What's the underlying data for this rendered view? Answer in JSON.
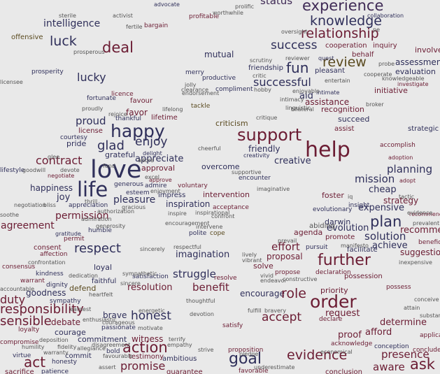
{
  "palette": {
    "navy": "#2f2f5a",
    "maroon": "#6b1c33",
    "olive": "#5a4a1f",
    "gray": "#555555",
    "purple": "#3f2a55"
  },
  "words": [
    {
      "text": "experience",
      "c": "purple"
    },
    {
      "text": "status",
      "c": "purple"
    },
    {
      "text": "advocate",
      "c": "navy"
    },
    {
      "text": "profitable",
      "c": "maroon"
    },
    {
      "text": "intelligence",
      "c": "navy"
    },
    {
      "text": "bargain",
      "c": "maroon"
    },
    {
      "text": "knowledge",
      "c": "navy"
    },
    {
      "text": "collaboration",
      "c": "navy"
    },
    {
      "text": "relationship",
      "c": "maroon"
    },
    {
      "text": "offensive",
      "c": "olive"
    },
    {
      "text": "luck",
      "c": "navy"
    },
    {
      "text": "deal",
      "c": "maroon"
    },
    {
      "text": "success",
      "c": "navy"
    },
    {
      "text": "cooperation",
      "c": "maroon"
    },
    {
      "text": "inquiry",
      "c": "maroon"
    },
    {
      "text": "involve",
      "c": "maroon"
    },
    {
      "text": "mutual",
      "c": "navy"
    },
    {
      "text": "review",
      "c": "olive"
    },
    {
      "text": "behalf",
      "c": "maroon"
    },
    {
      "text": "assessment",
      "c": "navy"
    },
    {
      "text": "prosperity",
      "c": "navy"
    },
    {
      "text": "fun",
      "c": "navy"
    },
    {
      "text": "friendship",
      "c": "navy"
    },
    {
      "text": "pleasant",
      "c": "navy"
    },
    {
      "text": "evaluation",
      "c": "navy"
    },
    {
      "text": "lucky",
      "c": "navy"
    },
    {
      "text": "merry",
      "c": "navy"
    },
    {
      "text": "productive",
      "c": "navy"
    },
    {
      "text": "successful",
      "c": "navy"
    },
    {
      "text": "investigate",
      "c": "maroon"
    },
    {
      "text": "initiative",
      "c": "maroon"
    },
    {
      "text": "compliment",
      "c": "navy"
    },
    {
      "text": "fortunate",
      "c": "navy"
    },
    {
      "text": "licence",
      "c": "maroon"
    },
    {
      "text": "favour",
      "c": "maroon"
    },
    {
      "text": "aid",
      "c": "navy"
    },
    {
      "text": "intimate",
      "c": "navy"
    },
    {
      "text": "assistance",
      "c": "maroon"
    },
    {
      "text": "tackle",
      "c": "olive"
    },
    {
      "text": "recognition",
      "c": "maroon"
    },
    {
      "text": "favor",
      "c": "maroon"
    },
    {
      "text": "thankful",
      "c": "navy"
    },
    {
      "text": "lifetime",
      "c": "maroon"
    },
    {
      "text": "succeed",
      "c": "navy"
    },
    {
      "text": "proud",
      "c": "navy"
    },
    {
      "text": "criticism",
      "c": "olive"
    },
    {
      "text": "assist",
      "c": "maroon"
    },
    {
      "text": "happy",
      "c": "navy"
    },
    {
      "text": "strategic",
      "c": "navy"
    },
    {
      "text": "license",
      "c": "maroon"
    },
    {
      "text": "support",
      "c": "maroon"
    },
    {
      "text": "pride",
      "c": "navy"
    },
    {
      "text": "enjoy",
      "c": "navy"
    },
    {
      "text": "glad",
      "c": "navy"
    },
    {
      "text": "help",
      "c": "maroon"
    },
    {
      "text": "accomplish",
      "c": "maroon"
    },
    {
      "text": "friendly",
      "c": "navy"
    },
    {
      "text": "grateful",
      "c": "navy"
    },
    {
      "text": "appreciate",
      "c": "navy"
    },
    {
      "text": "delight",
      "c": "navy"
    },
    {
      "text": "creativity",
      "c": "navy"
    },
    {
      "text": "adoption",
      "c": "maroon"
    },
    {
      "text": "contract",
      "c": "maroon"
    },
    {
      "text": "creative",
      "c": "navy"
    },
    {
      "text": "love",
      "c": "navy"
    },
    {
      "text": "approval",
      "c": "maroon"
    },
    {
      "text": "overcome",
      "c": "navy"
    },
    {
      "text": "planning",
      "c": "navy"
    },
    {
      "text": "negotiate",
      "c": "maroon"
    },
    {
      "text": "approve",
      "c": "maroon"
    },
    {
      "text": "encounter",
      "c": "navy"
    },
    {
      "text": "mission",
      "c": "navy"
    },
    {
      "text": "adopt",
      "c": "maroon"
    },
    {
      "text": "happiness",
      "c": "navy"
    },
    {
      "text": "life",
      "c": "navy"
    },
    {
      "text": "admire",
      "c": "navy"
    },
    {
      "text": "voluntary",
      "c": "maroon"
    },
    {
      "text": "cheap",
      "c": "navy"
    },
    {
      "text": "joy",
      "c": "navy"
    },
    {
      "text": "esteem",
      "c": "navy"
    },
    {
      "text": "impress",
      "c": "navy"
    },
    {
      "text": "intervention",
      "c": "maroon"
    },
    {
      "text": "foster",
      "c": "maroon"
    },
    {
      "text": "strategy",
      "c": "maroon"
    },
    {
      "text": "pleasure",
      "c": "navy"
    },
    {
      "text": "inspiration",
      "c": "navy"
    },
    {
      "text": "insight",
      "c": "navy"
    },
    {
      "text": "appreciation",
      "c": "navy"
    },
    {
      "text": "acceptance",
      "c": "maroon"
    },
    {
      "text": "expensive",
      "c": "navy"
    },
    {
      "text": "permission",
      "c": "maroon"
    },
    {
      "text": "evolutionary",
      "c": "navy"
    },
    {
      "text": "recommendation",
      "c": "maroon"
    },
    {
      "text": "plan",
      "c": "navy"
    },
    {
      "text": "agreement",
      "c": "maroon"
    },
    {
      "text": "evolution",
      "c": "navy"
    },
    {
      "text": "recommend",
      "c": "maroon"
    },
    {
      "text": "humble",
      "c": "navy"
    },
    {
      "text": "polite",
      "c": "navy"
    },
    {
      "text": "cope",
      "c": "olive"
    },
    {
      "text": "agenda",
      "c": "maroon"
    },
    {
      "text": "solution",
      "c": "navy"
    },
    {
      "text": "permit",
      "c": "maroon"
    },
    {
      "text": "promote",
      "c": "maroon"
    },
    {
      "text": "effort",
      "c": "maroon"
    },
    {
      "text": "achieve",
      "c": "navy"
    },
    {
      "text": "beneficial",
      "c": "maroon"
    },
    {
      "text": "consent",
      "c": "maroon"
    },
    {
      "text": "respect",
      "c": "navy"
    },
    {
      "text": "pursuit",
      "c": "navy"
    },
    {
      "text": "facilitate",
      "c": "navy"
    },
    {
      "text": "affection",
      "c": "maroon"
    },
    {
      "text": "imagination",
      "c": "navy"
    },
    {
      "text": "proposal",
      "c": "maroon"
    },
    {
      "text": "suggestion",
      "c": "maroon"
    },
    {
      "text": "further",
      "c": "maroon"
    },
    {
      "text": "loyal",
      "c": "navy"
    },
    {
      "text": "solve",
      "c": "maroon"
    },
    {
      "text": "consensus",
      "c": "maroon"
    },
    {
      "text": "kindness",
      "c": "navy"
    },
    {
      "text": "satisfaction",
      "c": "navy"
    },
    {
      "text": "struggle",
      "c": "navy"
    },
    {
      "text": "propose",
      "c": "maroon"
    },
    {
      "text": "declaration",
      "c": "maroon"
    },
    {
      "text": "possession",
      "c": "maroon"
    },
    {
      "text": "warrant",
      "c": "maroon"
    },
    {
      "text": "faithful",
      "c": "navy"
    },
    {
      "text": "resolve",
      "c": "maroon"
    },
    {
      "text": "dignity",
      "c": "navy"
    },
    {
      "text": "defend",
      "c": "olive"
    },
    {
      "text": "resolution",
      "c": "maroon"
    },
    {
      "text": "benefit",
      "c": "maroon"
    },
    {
      "text": "possess",
      "c": "maroon"
    },
    {
      "text": "goodness",
      "c": "navy"
    },
    {
      "text": "priority",
      "c": "maroon"
    },
    {
      "text": "duty",
      "c": "maroon"
    },
    {
      "text": "encourage",
      "c": "navy"
    },
    {
      "text": "role",
      "c": "maroon"
    },
    {
      "text": "sympathy",
      "c": "navy"
    },
    {
      "text": "order",
      "c": "maroon"
    },
    {
      "text": "responsibility",
      "c": "maroon"
    },
    {
      "text": "brave",
      "c": "navy"
    },
    {
      "text": "honest",
      "c": "navy"
    },
    {
      "text": "request",
      "c": "maroon"
    },
    {
      "text": "sensible",
      "c": "maroon"
    },
    {
      "text": "debate",
      "c": "maroon"
    },
    {
      "text": "accept",
      "c": "maroon"
    },
    {
      "text": "declare",
      "c": "maroon"
    },
    {
      "text": "determine",
      "c": "maroon"
    },
    {
      "text": "passionate",
      "c": "navy"
    },
    {
      "text": "satisfy",
      "c": "maroon"
    },
    {
      "text": "loyalty",
      "c": "maroon"
    },
    {
      "text": "courage",
      "c": "navy"
    },
    {
      "text": "afford",
      "c": "maroon"
    },
    {
      "text": "proof",
      "c": "maroon"
    },
    {
      "text": "witness",
      "c": "maroon"
    },
    {
      "text": "compromise",
      "c": "maroon"
    },
    {
      "text": "commitment",
      "c": "navy"
    },
    {
      "text": "action",
      "c": "maroon"
    },
    {
      "text": "acknowledge",
      "c": "maroon"
    },
    {
      "text": "conception",
      "c": "navy"
    },
    {
      "text": "conclude",
      "c": "maroon"
    },
    {
      "text": "applicable",
      "c": "maroon"
    },
    {
      "text": "virtue",
      "c": "navy"
    },
    {
      "text": "bold",
      "c": "navy"
    },
    {
      "text": "proposition",
      "c": "maroon"
    },
    {
      "text": "goal",
      "c": "navy"
    },
    {
      "text": "evidence",
      "c": "maroon"
    },
    {
      "text": "presence",
      "c": "maroon"
    },
    {
      "text": "commit",
      "c": "navy"
    },
    {
      "text": "testimony",
      "c": "maroon"
    },
    {
      "text": "ambitious",
      "c": "navy"
    },
    {
      "text": "act",
      "c": "maroon"
    },
    {
      "text": "honesty",
      "c": "navy"
    },
    {
      "text": "promise",
      "c": "maroon"
    },
    {
      "text": "aware",
      "c": "maroon"
    },
    {
      "text": "ask",
      "c": "maroon"
    },
    {
      "text": "sacrifice",
      "c": "maroon"
    },
    {
      "text": "patience",
      "c": "navy"
    },
    {
      "text": "guarantee",
      "c": "maroon"
    },
    {
      "text": "favorable",
      "c": "maroon"
    },
    {
      "text": "conclusion",
      "c": "maroon"
    },
    {
      "text": "gratitude",
      "c": "navy"
    },
    {
      "text": "generous",
      "c": "navy"
    },
    {
      "text": "courtesy",
      "c": "navy"
    },
    {
      "text": "lifestyle",
      "c": "navy"
    },
    {
      "text": "sterile",
      "c": "gray"
    },
    {
      "text": "worthwhile",
      "c": "gray"
    },
    {
      "text": "activist",
      "c": "gray"
    },
    {
      "text": "prolific",
      "c": "gray"
    },
    {
      "text": "fertile",
      "c": "gray"
    },
    {
      "text": "oversight",
      "c": "gray"
    },
    {
      "text": "prosperous",
      "c": "gray"
    },
    {
      "text": "reviewer",
      "c": "gray"
    },
    {
      "text": "critic",
      "c": "gray"
    },
    {
      "text": "jolly",
      "c": "gray"
    },
    {
      "text": "entertain",
      "c": "gray"
    },
    {
      "text": "cooperate",
      "c": "gray"
    },
    {
      "text": "knowledgeable",
      "c": "gray"
    },
    {
      "text": "hobby",
      "c": "gray"
    },
    {
      "text": "clearance",
      "c": "gray"
    },
    {
      "text": "endorsement",
      "c": "gray"
    },
    {
      "text": "enjoyable",
      "c": "gray"
    },
    {
      "text": "proudly",
      "c": "gray"
    },
    {
      "text": "rejoice",
      "c": "gray"
    },
    {
      "text": "lifelong",
      "c": "gray"
    },
    {
      "text": "intimacy",
      "c": "gray"
    },
    {
      "text": "linguistic",
      "c": "gray"
    },
    {
      "text": "broker",
      "c": "gray"
    },
    {
      "text": "critique",
      "c": "gray"
    },
    {
      "text": "cheerful",
      "c": "gray"
    },
    {
      "text": "goodwill",
      "c": "gray"
    },
    {
      "text": "supportive",
      "c": "gray"
    },
    {
      "text": "fond",
      "c": "gray"
    },
    {
      "text": "imaginative",
      "c": "gray"
    },
    {
      "text": "thrill",
      "c": "gray"
    },
    {
      "text": "enjoyment",
      "c": "gray"
    },
    {
      "text": "gracious",
      "c": "gray"
    },
    {
      "text": "inspire",
      "c": "gray"
    },
    {
      "text": "inspirational",
      "c": "gray"
    },
    {
      "text": "confront",
      "c": "gray"
    },
    {
      "text": "encouragement",
      "c": "gray"
    },
    {
      "text": "intervene",
      "c": "gray"
    },
    {
      "text": "authorization",
      "c": "gray"
    },
    {
      "text": "admiration",
      "c": "gray"
    },
    {
      "text": "generosity",
      "c": "gray"
    },
    {
      "text": "negotiation",
      "c": "gray"
    },
    {
      "text": "bliss",
      "c": "gray"
    },
    {
      "text": "respectful",
      "c": "gray"
    },
    {
      "text": "sincerely",
      "c": "gray"
    },
    {
      "text": "prevail",
      "c": "gray"
    },
    {
      "text": "manifesto",
      "c": "gray"
    },
    {
      "text": "lively",
      "c": "gray"
    },
    {
      "text": "vibrant",
      "c": "gray"
    },
    {
      "text": "confrontation",
      "c": "gray"
    },
    {
      "text": "vivid",
      "c": "gray"
    },
    {
      "text": "endeavor",
      "c": "gray"
    },
    {
      "text": "constructive",
      "c": "gray"
    },
    {
      "text": "dedication",
      "c": "gray"
    },
    {
      "text": "sympathetic",
      "c": "gray"
    },
    {
      "text": "sincere",
      "c": "gray"
    },
    {
      "text": "heartfelt",
      "c": "gray"
    },
    {
      "text": "accountable",
      "c": "gray"
    },
    {
      "text": "thoughtful",
      "c": "gray"
    },
    {
      "text": "fulfill",
      "c": "gray"
    },
    {
      "text": "bravery",
      "c": "gray"
    },
    {
      "text": "earnest",
      "c": "gray"
    },
    {
      "text": "energetic",
      "c": "gray"
    },
    {
      "text": "devotion",
      "c": "gray"
    },
    {
      "text": "enthusiastic",
      "c": "gray"
    },
    {
      "text": "courageous",
      "c": "gray"
    },
    {
      "text": "motivate",
      "c": "gray"
    },
    {
      "text": "terrify",
      "c": "gray"
    },
    {
      "text": "empathy",
      "c": "gray"
    },
    {
      "text": "deposition",
      "c": "gray"
    },
    {
      "text": "disagreement",
      "c": "gray"
    },
    {
      "text": "humility",
      "c": "gray"
    },
    {
      "text": "fidelity",
      "c": "gray"
    },
    {
      "text": "allegiance",
      "c": "gray"
    },
    {
      "text": "warranty",
      "c": "gray"
    },
    {
      "text": "favourable",
      "c": "gray"
    },
    {
      "text": "strive",
      "c": "gray"
    },
    {
      "text": "pledge",
      "c": "gray"
    },
    {
      "text": "assert",
      "c": "gray"
    },
    {
      "text": "underestimate",
      "c": "gray"
    },
    {
      "text": "economical",
      "c": "gray"
    },
    {
      "text": "substantive",
      "c": "gray"
    },
    {
      "text": "conceive",
      "c": "gray"
    },
    {
      "text": "attain",
      "c": "gray"
    },
    {
      "text": "inexpensive",
      "c": "gray"
    },
    {
      "text": "prevalent",
      "c": "gray"
    },
    {
      "text": "tactic",
      "c": "gray"
    },
    {
      "text": "evidence",
      "c": "gray"
    },
    {
      "text": "soothe",
      "c": "gray"
    },
    {
      "text": "iq",
      "c": "gray"
    },
    {
      "text": "glee",
      "c": "gray"
    },
    {
      "text": "devote",
      "c": "gray"
    },
    {
      "text": "adore",
      "c": "gray"
    },
    {
      "text": "excel",
      "c": "gray"
    },
    {
      "text": "probe",
      "c": "gray"
    },
    {
      "text": "pe",
      "c": "gray"
    },
    {
      "text": "licensee",
      "c": "gray"
    },
    {
      "text": "bilateral",
      "c": "gray"
    },
    {
      "text": "scrutiny",
      "c": "gray"
    },
    {
      "text": "quest",
      "c": "navy"
    },
    {
      "text": "darwin",
      "c": "navy"
    },
    {
      "text": "abiding",
      "c": "gray"
    }
  ]
}
